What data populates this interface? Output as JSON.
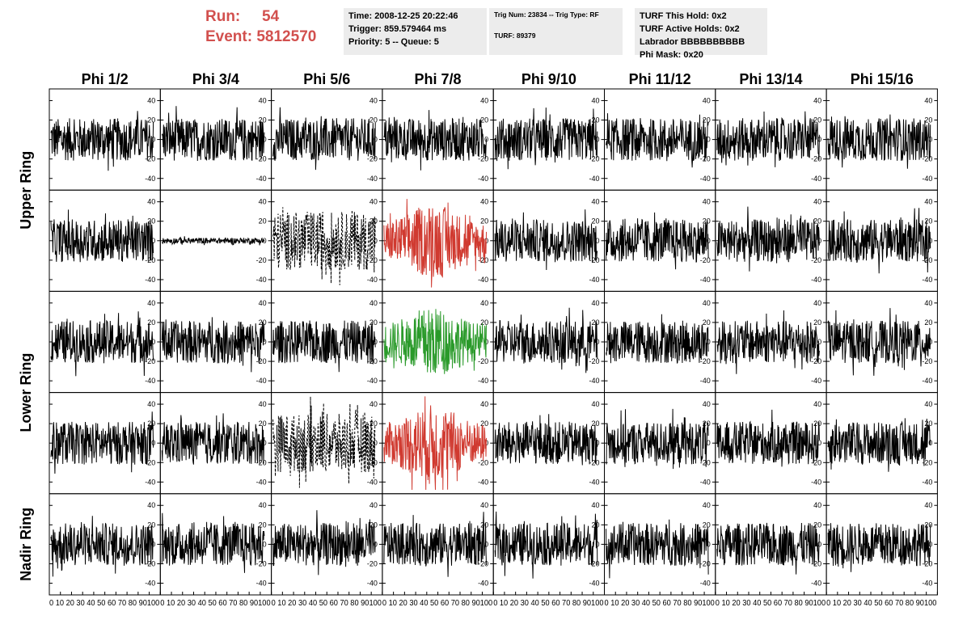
{
  "header": {
    "run_label": "Run:",
    "run_value": "54",
    "event_label": "Event:",
    "event_value": "5812570",
    "run_color": "#d2504e"
  },
  "info_time": {
    "time": "Time: 2008-12-25 20:22:46",
    "trigger": "Trigger: 859.579464 ms",
    "priority": "Priority: 5 -- Queue: 5"
  },
  "info_trig": {
    "trig": "Trig Num: 23834 -- Trig Type: RF",
    "turf": "TURF: 89379"
  },
  "info_turf": {
    "this_hold": "TURF This Hold: 0x2",
    "active_holds": "TURF Active Holds: 0x2",
    "labrador": "Labrador BBBBBBBBBB",
    "phi_mask": "Phi Mask: 0x20"
  },
  "chart_data": {
    "type": "line",
    "columns": [
      "Phi 1/2",
      "Phi 3/4",
      "Phi 5/6",
      "Phi 7/8",
      "Phi 9/10",
      "Phi 11/12",
      "Phi 13/14",
      "Phi 15/16"
    ],
    "rows": [
      "Upper Ring",
      "",
      "Lower Ring",
      "",
      "Nadir Ring"
    ],
    "ylim": [
      -52,
      52
    ],
    "xlim": [
      0,
      100
    ],
    "y_ticks": [
      -40,
      -20,
      0,
      20,
      40
    ],
    "x_ticks": [
      0,
      10,
      20,
      30,
      40,
      50,
      60,
      70,
      80,
      90,
      100
    ],
    "x_tick_labels": "0 10 20 30 40 50 60 70 80 90100",
    "n_samples": 260,
    "waveform_colors": {
      "normal": "#000000",
      "triggered": "#d03a30",
      "lower_trigger": "#2a9a2a"
    },
    "special_panels": [
      {
        "row": 1,
        "col": 1,
        "style": "flat",
        "amplitude": 3
      },
      {
        "row": 1,
        "col": 2,
        "style": "dashed",
        "amplitude": 30
      },
      {
        "row": 1,
        "col": 3,
        "style": "triggered",
        "amplitude": 38
      },
      {
        "row": 2,
        "col": 3,
        "style": "lower_trigger",
        "amplitude": 36
      },
      {
        "row": 3,
        "col": 2,
        "style": "dashed",
        "amplitude": 30
      },
      {
        "row": 3,
        "col": 3,
        "style": "triggered",
        "amplitude": 40
      }
    ],
    "default_amplitude": 22
  }
}
